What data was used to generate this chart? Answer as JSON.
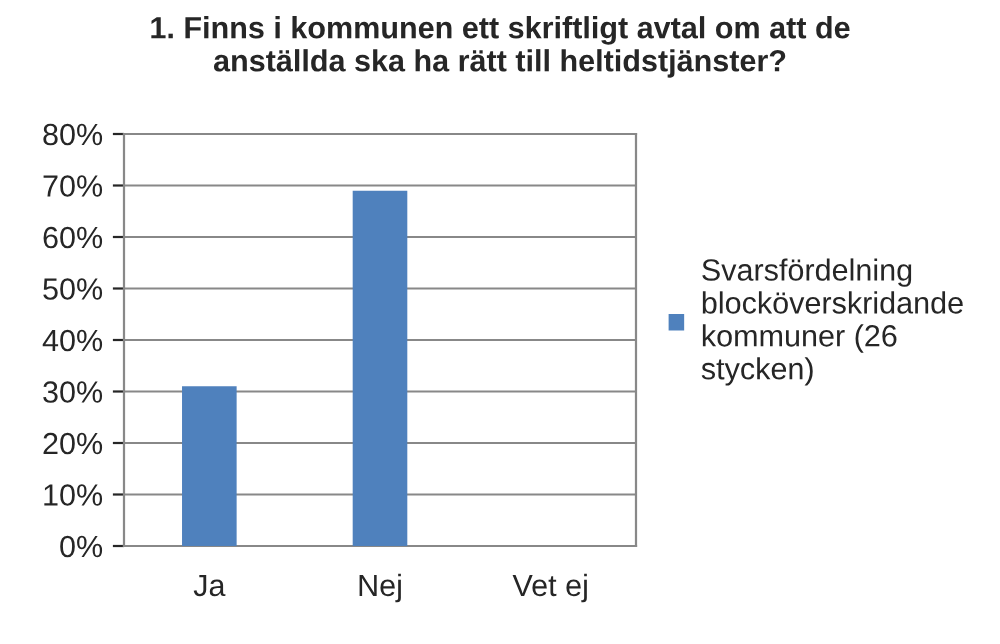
{
  "chart_data": {
    "type": "bar",
    "title": "1. Finns i kommunen ett skriftligt avtal om att de\nanställda ska ha rätt till heltidstjänster?",
    "categories": [
      "Ja",
      "Nej",
      "Vet ej"
    ],
    "series": [
      {
        "name": "Svarsfördelning\nblocköverskridande\nkommuner (26\nstycken)",
        "color": "#4f81bd",
        "values": [
          31,
          69,
          0
        ]
      }
    ],
    "ylim": [
      0,
      80
    ],
    "yticks": [
      {
        "value": 0,
        "label": "0%"
      },
      {
        "value": 10,
        "label": "10%"
      },
      {
        "value": 20,
        "label": "20%"
      },
      {
        "value": 30,
        "label": "30%"
      },
      {
        "value": 40,
        "label": "40%"
      },
      {
        "value": 50,
        "label": "50%"
      },
      {
        "value": 60,
        "label": "60%"
      },
      {
        "value": 70,
        "label": "70%"
      },
      {
        "value": 80,
        "label": "80%"
      }
    ],
    "grid": "y",
    "legend": "right"
  }
}
